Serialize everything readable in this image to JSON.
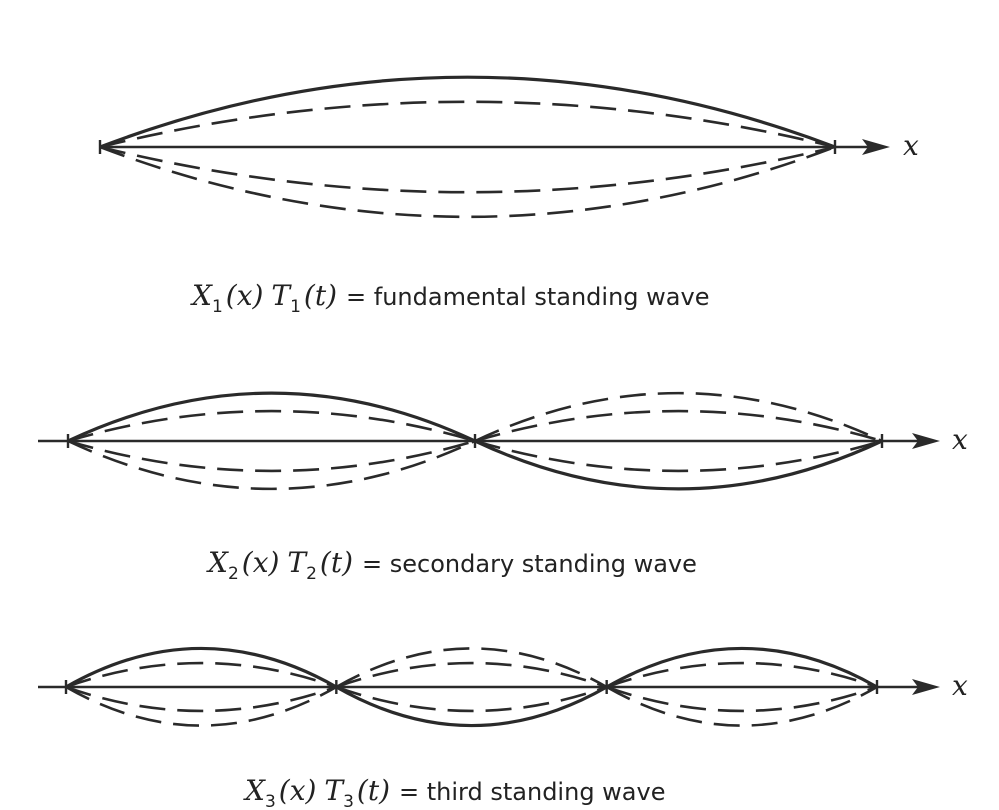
{
  "axis_label": "x",
  "panels": [
    {
      "id": "fundamental",
      "caption": {
        "x_var": "X",
        "x_sub": "1",
        "x_arg": "(x)",
        "t_var": "T",
        "t_sub": "1",
        "t_arg": "(t)",
        "description": "= fundamental standing wave"
      },
      "harmonic": 1
    },
    {
      "id": "secondary",
      "caption": {
        "x_var": "X",
        "x_sub": "2",
        "x_arg": "(x)",
        "t_var": "T",
        "t_sub": "2",
        "t_arg": "(t)",
        "description": "= secondary standing wave"
      },
      "harmonic": 2
    },
    {
      "id": "third",
      "caption": {
        "x_var": "X",
        "x_sub": "3",
        "x_arg": "(x)",
        "t_var": "T",
        "t_sub": "3",
        "t_arg": "(t)",
        "description": "= third standing wave"
      },
      "harmonic": 3
    }
  ],
  "line_color": "#2a2a2a"
}
